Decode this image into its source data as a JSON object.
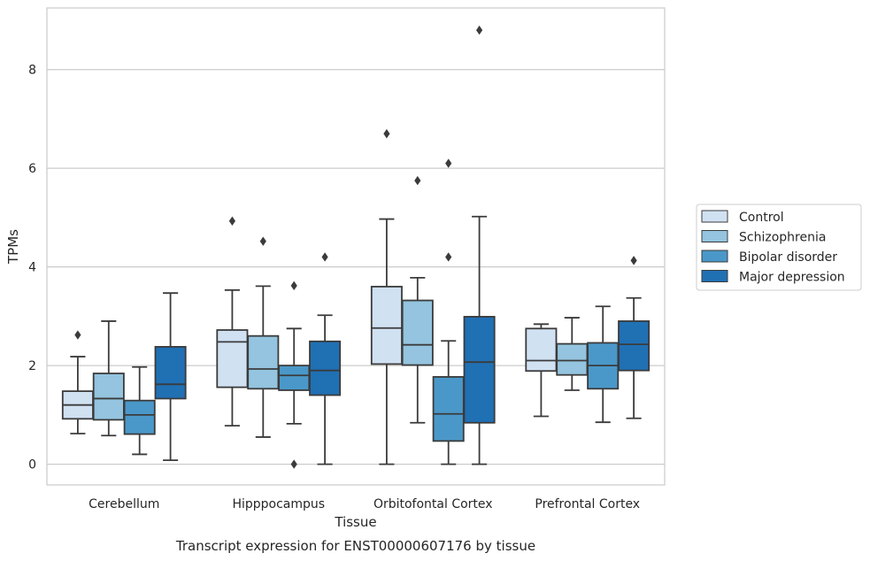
{
  "chart_data": {
    "type": "boxplot",
    "caption": "Transcript expression for ENST00000607176 by tissue",
    "xlabel": "Tissue",
    "ylabel": "TPMs",
    "ylim": [
      -0.42,
      9.25
    ],
    "yticks": [
      0,
      2,
      4,
      6,
      8
    ],
    "grid": true,
    "legend_position": "right",
    "categories": [
      "Cerebellum",
      "Hipppocampus",
      "Orbitofontal Cortex",
      "Prefrontal Cortex"
    ],
    "series": [
      {
        "name": "Control",
        "color": "#d0e1f2",
        "boxes": [
          {
            "whislo": 0.62,
            "q1": 0.92,
            "med": 1.2,
            "q3": 1.48,
            "whishi": 2.18,
            "fliers": [
              2.62
            ]
          },
          {
            "whislo": 0.78,
            "q1": 1.56,
            "med": 2.48,
            "q3": 2.72,
            "whishi": 3.53,
            "fliers": [
              4.93
            ]
          },
          {
            "whislo": 0.0,
            "q1": 2.03,
            "med": 2.76,
            "q3": 3.6,
            "whishi": 4.97,
            "fliers": [
              6.7
            ]
          },
          {
            "whislo": 0.97,
            "q1": 1.89,
            "med": 2.1,
            "q3": 2.75,
            "whishi": 2.84,
            "fliers": []
          }
        ]
      },
      {
        "name": "Schizophrenia",
        "color": "#94c4df",
        "boxes": [
          {
            "whislo": 0.58,
            "q1": 0.9,
            "med": 1.33,
            "q3": 1.84,
            "whishi": 2.9,
            "fliers": []
          },
          {
            "whislo": 0.55,
            "q1": 1.53,
            "med": 1.93,
            "q3": 2.6,
            "whishi": 3.61,
            "fliers": [
              4.52
            ]
          },
          {
            "whislo": 0.84,
            "q1": 2.01,
            "med": 2.42,
            "q3": 3.32,
            "whishi": 3.78,
            "fliers": [
              5.75
            ]
          },
          {
            "whislo": 1.5,
            "q1": 1.81,
            "med": 2.1,
            "q3": 2.44,
            "whishi": 2.97,
            "fliers": []
          }
        ]
      },
      {
        "name": "Bipolar disorder",
        "color": "#4a98c9",
        "boxes": [
          {
            "whislo": 0.2,
            "q1": 0.61,
            "med": 1.0,
            "q3": 1.29,
            "whishi": 1.97,
            "fliers": []
          },
          {
            "whislo": 0.82,
            "q1": 1.5,
            "med": 1.8,
            "q3": 2.0,
            "whishi": 2.75,
            "fliers": [
              3.62,
              0.0
            ]
          },
          {
            "whislo": 0.0,
            "q1": 0.47,
            "med": 1.02,
            "q3": 1.77,
            "whishi": 2.5,
            "fliers": [
              4.2,
              6.1
            ]
          },
          {
            "whislo": 0.85,
            "q1": 1.53,
            "med": 2.0,
            "q3": 2.46,
            "whishi": 3.2,
            "fliers": []
          }
        ]
      },
      {
        "name": "Major depression",
        "color": "#2070b4",
        "boxes": [
          {
            "whislo": 0.08,
            "q1": 1.33,
            "med": 1.62,
            "q3": 2.38,
            "whishi": 3.47,
            "fliers": []
          },
          {
            "whislo": 0.0,
            "q1": 1.4,
            "med": 1.9,
            "q3": 2.49,
            "whishi": 3.02,
            "fliers": [
              4.2
            ]
          },
          {
            "whislo": 0.0,
            "q1": 0.84,
            "med": 2.07,
            "q3": 2.99,
            "whishi": 5.02,
            "fliers": [
              8.8
            ]
          },
          {
            "whislo": 0.93,
            "q1": 1.9,
            "med": 2.43,
            "q3": 2.9,
            "whishi": 3.37,
            "fliers": [
              4.13
            ]
          }
        ]
      }
    ]
  }
}
